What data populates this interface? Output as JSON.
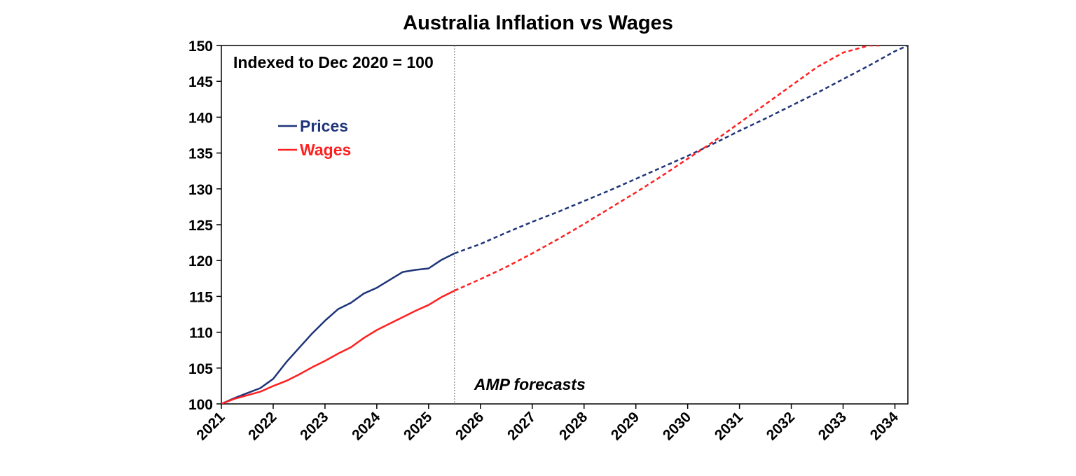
{
  "chart_data": {
    "type": "line",
    "title": "Australia Inflation vs Wages",
    "annotation": "Indexed to Dec 2020 = 100",
    "forecast_label": "AMP forecasts",
    "forecast_start": 2025.5,
    "xlabel": "",
    "ylabel": "",
    "xlim": [
      2021,
      2034.25
    ],
    "ylim": [
      100,
      150
    ],
    "x_ticks": [
      "2021",
      "2022",
      "2023",
      "2024",
      "2025",
      "2026",
      "2027",
      "2028",
      "2029",
      "2030",
      "2031",
      "2032",
      "2033",
      "2034"
    ],
    "y_ticks": [
      "100",
      "105",
      "110",
      "115",
      "120",
      "125",
      "130",
      "135",
      "140",
      "145",
      "150"
    ],
    "grid": false,
    "legend_position": "top-left",
    "series": [
      {
        "name": "Prices",
        "color": "#1f3579",
        "actual": {
          "x": [
            2021.0,
            2021.25,
            2021.5,
            2021.75,
            2022.0,
            2022.25,
            2022.5,
            2022.75,
            2023.0,
            2023.25,
            2023.5,
            2023.75,
            2024.0,
            2024.25,
            2024.5,
            2024.75,
            2025.0,
            2025.25,
            2025.5
          ],
          "y": [
            100.0,
            100.8,
            101.5,
            102.2,
            103.5,
            105.8,
            107.8,
            109.8,
            111.6,
            113.2,
            114.1,
            115.4,
            116.2,
            117.3,
            118.4,
            118.7,
            118.9,
            120.1,
            121.0
          ]
        },
        "forecast": {
          "x": [
            2025.5,
            2026.0,
            2026.5,
            2027.0,
            2027.5,
            2028.0,
            2028.5,
            2029.0,
            2029.5,
            2030.0,
            2030.5,
            2031.0,
            2031.5,
            2032.0,
            2032.5,
            2033.0,
            2033.5,
            2034.0,
            2034.25
          ],
          "y": [
            121.0,
            122.3,
            123.9,
            125.4,
            126.8,
            128.3,
            129.8,
            131.4,
            133.0,
            134.6,
            136.3,
            138.1,
            139.8,
            141.6,
            143.4,
            145.3,
            147.2,
            149.2,
            150.0
          ]
        }
      },
      {
        "name": "Wages",
        "color": "#ff2020",
        "actual": {
          "x": [
            2021.0,
            2021.25,
            2021.5,
            2021.75,
            2022.0,
            2022.25,
            2022.5,
            2022.75,
            2023.0,
            2023.25,
            2023.5,
            2023.75,
            2024.0,
            2024.25,
            2024.5,
            2024.75,
            2025.0,
            2025.25,
            2025.5
          ],
          "y": [
            100.0,
            100.7,
            101.2,
            101.7,
            102.5,
            103.2,
            104.1,
            105.1,
            106.0,
            107.0,
            107.9,
            109.2,
            110.3,
            111.2,
            112.1,
            113.0,
            113.8,
            114.9,
            115.8
          ]
        },
        "forecast": {
          "x": [
            2025.5,
            2026.0,
            2026.5,
            2027.0,
            2027.5,
            2028.0,
            2028.5,
            2029.0,
            2029.5,
            2030.0,
            2030.5,
            2031.0,
            2031.5,
            2032.0,
            2032.5,
            2033.0,
            2033.5,
            2033.75
          ],
          "y": [
            115.8,
            117.4,
            119.1,
            121.0,
            123.0,
            125.1,
            127.3,
            129.5,
            131.8,
            134.2,
            136.6,
            139.2,
            141.8,
            144.4,
            147.0,
            149.0,
            150.0,
            150.0
          ]
        }
      }
    ]
  }
}
